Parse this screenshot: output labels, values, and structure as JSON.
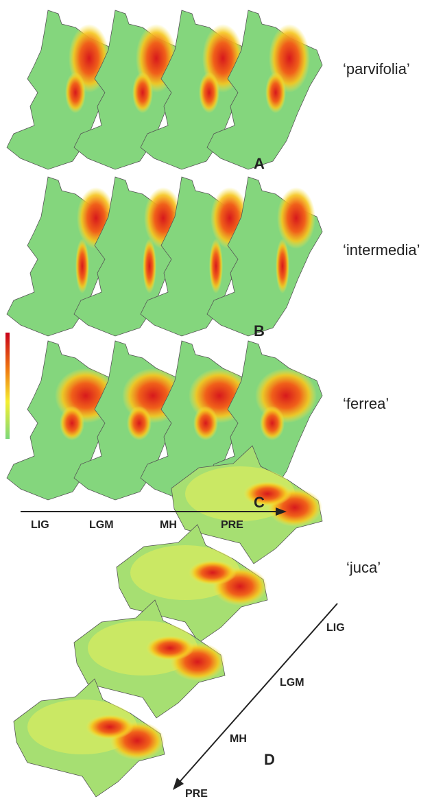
{
  "panels": [
    {
      "label": "A",
      "taxon": "‘parvifolia’"
    },
    {
      "label": "B",
      "taxon": "‘intermedia’"
    },
    {
      "label": "C",
      "taxon": "‘ferrea’"
    },
    {
      "label": "D",
      "taxon": "‘juca’"
    }
  ],
  "time_axis": [
    "LIG",
    "LGM",
    "MH",
    "PRE"
  ],
  "juca_time_axis": [
    "LIG",
    "LGM",
    "MH",
    "PRE"
  ]
}
